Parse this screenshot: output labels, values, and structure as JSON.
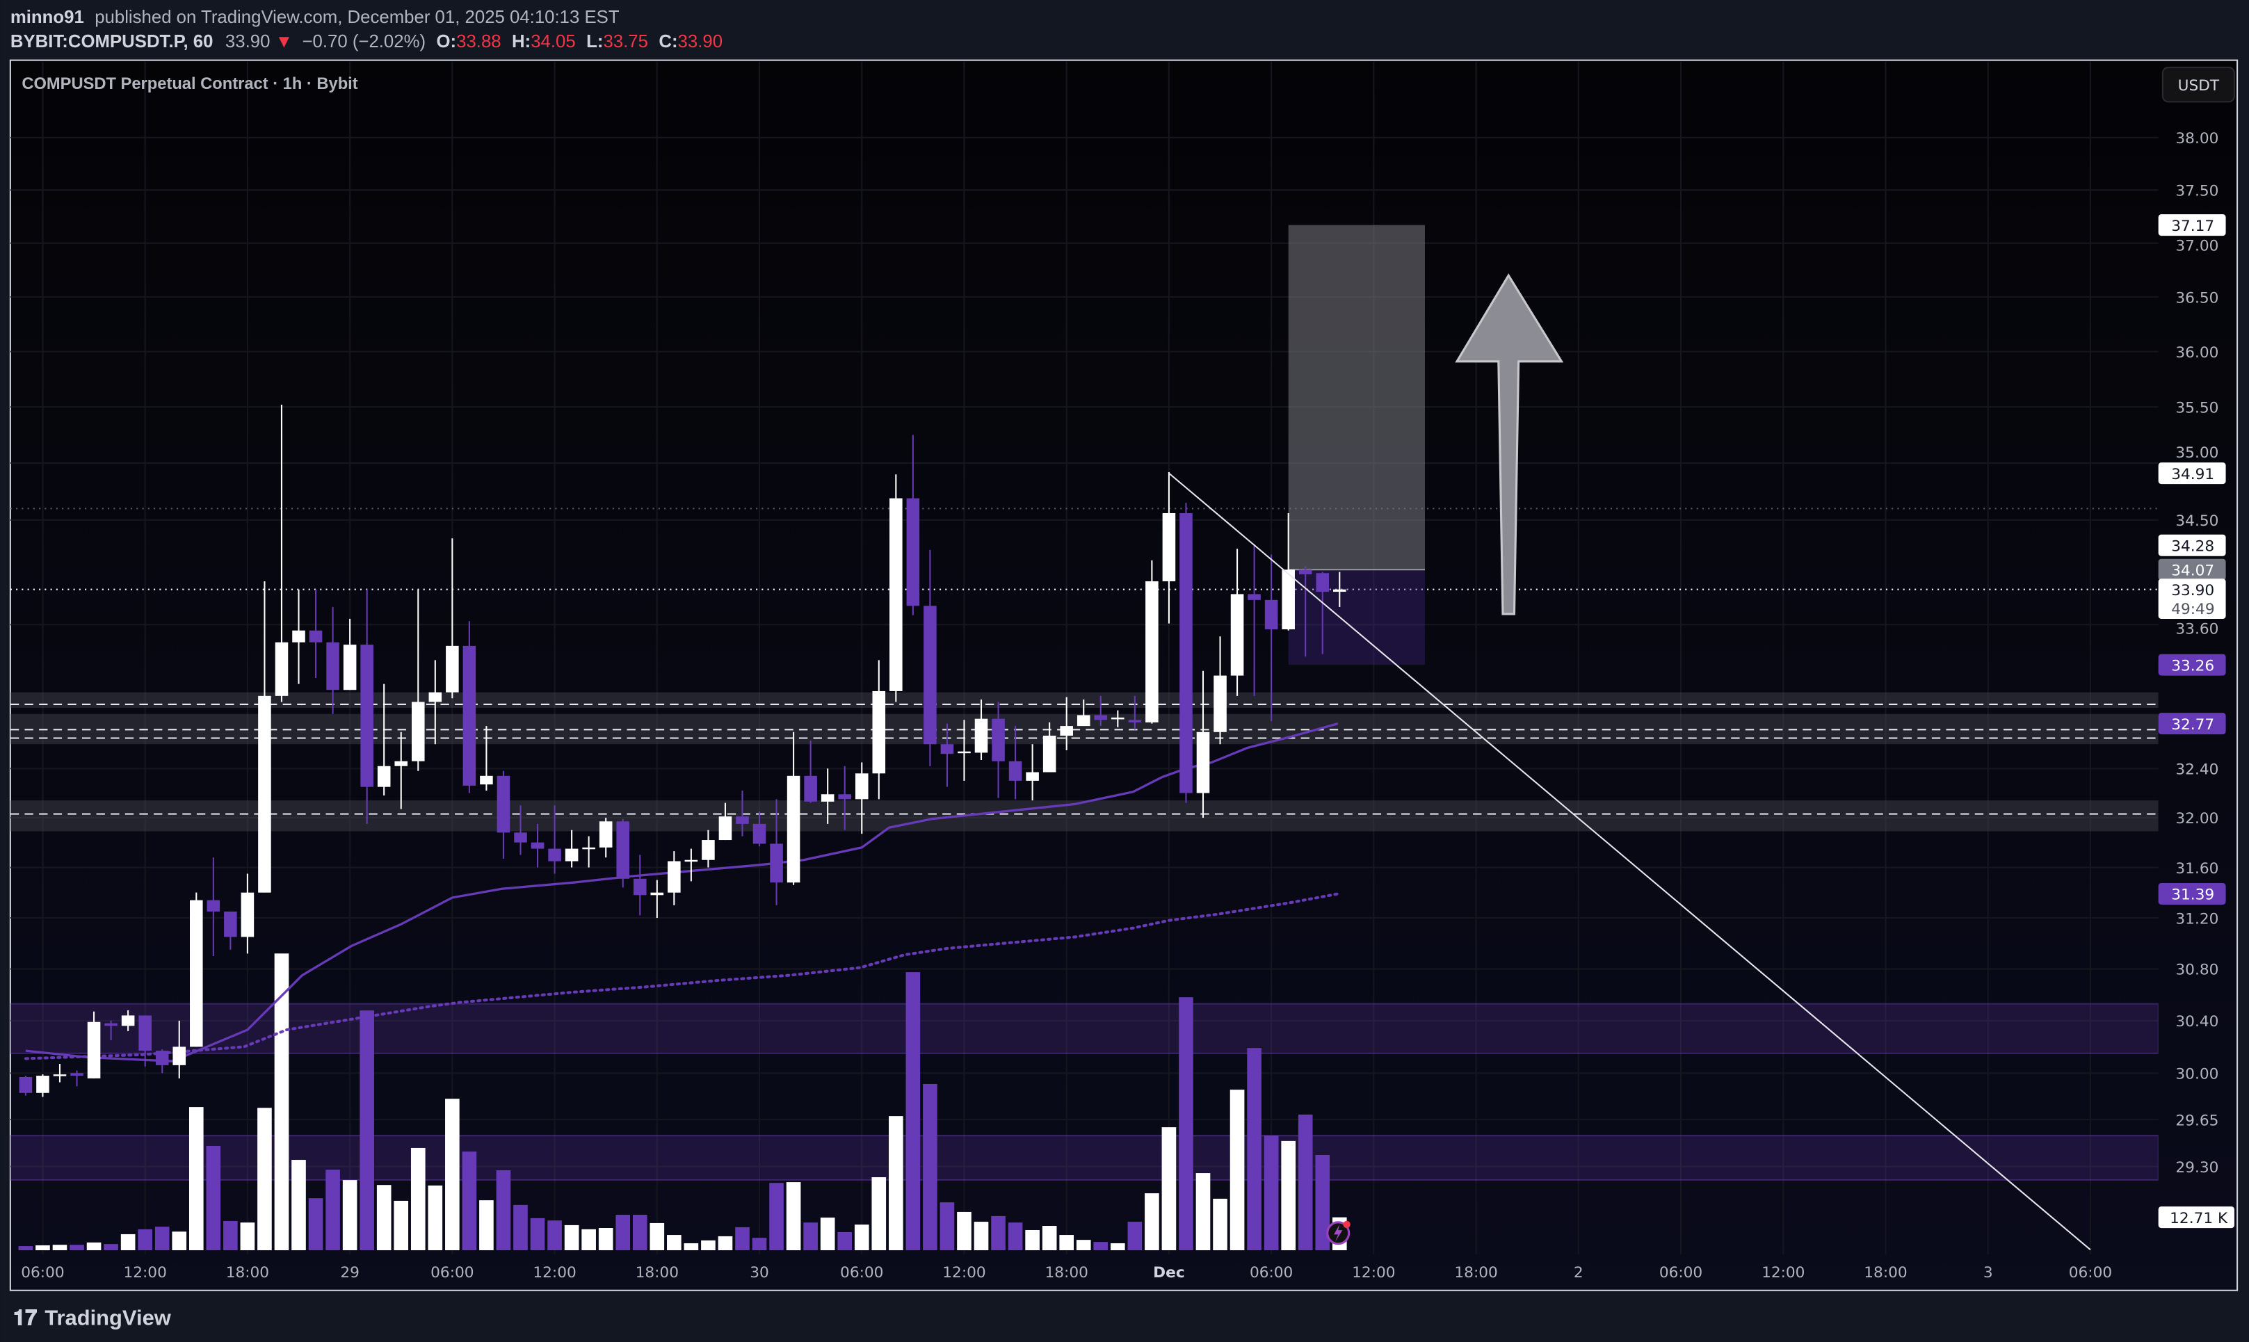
{
  "header": {
    "author": "minno91",
    "published": "published on TradingView.com, December 01, 2025 04:10:13 EST",
    "symbol": "BYBIT:COMPUSDT.P, 60",
    "last": "33.90",
    "change": "−0.70 (−2.02%)",
    "o_label": "O:",
    "o": "33.88",
    "h_label": "H:",
    "h": "34.05",
    "l_label": "L:",
    "l": "33.75",
    "c_label": "C:",
    "c": "33.90"
  },
  "legend": "COMPUSDT Perpetual Contract · 1h · Bybit",
  "currency_button": "USDT",
  "footer": {
    "logo": "TradingView"
  },
  "colors": {
    "up": "#ffffff",
    "down": "#673ab7",
    "ma": "#673ab7",
    "background": "#050509",
    "down_arrow": "#f23645"
  },
  "chart_data": {
    "type": "candlestick",
    "interval": "1h",
    "y_scale": "log",
    "ylim": [
      29.1,
      38.4
    ],
    "grid": true,
    "y_ticks": [
      "38.00",
      "37.50",
      "37.00",
      "36.50",
      "36.00",
      "35.50",
      "35.00",
      "34.50",
      "33.60",
      "32.40",
      "32.00",
      "31.60",
      "31.20",
      "30.80",
      "30.40",
      "30.00",
      "29.65",
      "29.30"
    ],
    "x_ticks": [
      "06:00",
      "12:00",
      "18:00",
      "29",
      "06:00",
      "12:00",
      "18:00",
      "30",
      "06:00",
      "12:00",
      "18:00",
      "Dec",
      "06:00",
      "12:00",
      "18:00",
      "2",
      "06:00",
      "12:00",
      "18:00",
      "3",
      "06:00"
    ],
    "candle_fields": [
      "open",
      "high",
      "low",
      "close",
      "volume_K"
    ],
    "candles": [
      [
        29.97,
        29.98,
        29.83,
        29.85,
        1.6
      ],
      [
        29.85,
        29.99,
        29.82,
        29.98,
        1.9
      ],
      [
        29.98,
        30.07,
        29.93,
        29.99,
        2.1
      ],
      [
        30.0,
        30.02,
        29.9,
        29.98,
        2.1
      ],
      [
        29.96,
        30.47,
        29.96,
        30.39,
        3.0
      ],
      [
        30.38,
        30.4,
        30.25,
        30.36,
        2.4
      ],
      [
        30.36,
        30.48,
        30.32,
        30.44,
        6.2
      ],
      [
        30.44,
        30.44,
        30.05,
        30.17,
        8.1
      ],
      [
        30.17,
        30.18,
        30.0,
        30.06,
        9.1
      ],
      [
        30.06,
        30.4,
        29.96,
        30.2,
        7.2
      ],
      [
        30.2,
        31.4,
        30.2,
        31.34,
        55.3
      ],
      [
        31.34,
        31.68,
        30.9,
        31.25,
        40.3
      ],
      [
        31.25,
        31.25,
        30.95,
        31.05,
        11.3
      ],
      [
        31.05,
        31.55,
        30.92,
        31.4,
        10.7
      ],
      [
        31.4,
        33.97,
        31.4,
        33.0,
        55.0
      ],
      [
        33.0,
        35.52,
        32.95,
        33.45,
        114.6
      ],
      [
        33.45,
        33.9,
        33.1,
        33.55,
        34.9
      ],
      [
        33.55,
        33.9,
        33.15,
        33.45,
        20.1
      ],
      [
        33.45,
        33.75,
        32.85,
        33.05,
        31.1
      ],
      [
        33.05,
        33.65,
        33.05,
        33.43,
        27.1
      ],
      [
        33.43,
        33.9,
        31.95,
        32.25,
        92.6
      ],
      [
        32.25,
        33.1,
        32.18,
        32.42,
        25.2
      ],
      [
        32.42,
        32.7,
        32.07,
        32.46,
        19.1
      ],
      [
        32.46,
        33.9,
        32.38,
        32.95,
        39.5
      ],
      [
        32.95,
        33.3,
        32.6,
        33.03,
        25.0
      ],
      [
        33.03,
        34.34,
        32.98,
        33.42,
        58.5
      ],
      [
        33.42,
        33.63,
        32.2,
        32.26,
        38.1
      ],
      [
        32.27,
        32.75,
        32.22,
        32.34,
        19.3
      ],
      [
        32.34,
        32.38,
        31.67,
        31.88,
        30.9
      ],
      [
        31.88,
        32.1,
        31.7,
        31.8,
        17.5
      ],
      [
        31.8,
        31.95,
        31.6,
        31.75,
        12.4
      ],
      [
        31.75,
        32.1,
        31.55,
        31.65,
        11.5
      ],
      [
        31.65,
        31.9,
        31.6,
        31.75,
        9.7
      ],
      [
        31.75,
        31.85,
        31.6,
        31.76,
        8.1
      ],
      [
        31.76,
        32.0,
        31.68,
        31.97,
        8.6
      ],
      [
        31.97,
        31.99,
        31.44,
        31.51,
        13.7
      ],
      [
        31.51,
        31.7,
        31.22,
        31.38,
        13.7
      ],
      [
        31.38,
        31.5,
        31.2,
        31.4,
        10.5
      ],
      [
        31.4,
        31.73,
        31.3,
        31.65,
        5.9
      ],
      [
        31.65,
        31.75,
        31.49,
        31.66,
        2.7
      ],
      [
        31.66,
        31.9,
        31.6,
        31.82,
        3.8
      ],
      [
        31.82,
        32.12,
        31.82,
        32.01,
        5.4
      ],
      [
        32.01,
        32.22,
        31.85,
        31.95,
        8.9
      ],
      [
        31.95,
        32.05,
        31.77,
        31.79,
        4.8
      ],
      [
        31.79,
        32.15,
        31.3,
        31.48,
        26.0
      ],
      [
        31.48,
        32.7,
        31.46,
        32.34,
        26.3
      ],
      [
        32.34,
        32.63,
        32.12,
        32.13,
        10.7
      ],
      [
        32.13,
        32.4,
        31.95,
        32.19,
        12.6
      ],
      [
        32.19,
        32.42,
        31.9,
        32.15,
        7.0
      ],
      [
        32.15,
        32.45,
        31.87,
        32.36,
        9.9
      ],
      [
        32.36,
        33.3,
        32.15,
        33.04,
        28.2
      ],
      [
        33.04,
        34.9,
        32.95,
        34.69,
        51.8
      ],
      [
        34.69,
        35.25,
        33.68,
        33.76,
        107.4
      ],
      [
        33.76,
        34.24,
        32.42,
        32.6,
        64.2
      ],
      [
        32.6,
        32.77,
        32.25,
        32.52,
        18.5
      ],
      [
        32.54,
        32.8,
        32.3,
        32.54,
        14.8
      ],
      [
        32.53,
        32.97,
        32.47,
        32.81,
        11.0
      ],
      [
        32.81,
        32.95,
        32.16,
        32.46,
        13.2
      ],
      [
        32.46,
        32.75,
        32.15,
        32.3,
        10.7
      ],
      [
        32.3,
        32.6,
        32.14,
        32.37,
        7.8
      ],
      [
        32.37,
        32.78,
        32.37,
        32.67,
        9.4
      ],
      [
        32.67,
        32.99,
        32.55,
        32.75,
        5.9
      ],
      [
        32.75,
        32.97,
        32.75,
        32.84,
        4.0
      ],
      [
        32.84,
        33.0,
        32.75,
        32.8,
        3.2
      ],
      [
        32.81,
        32.88,
        32.74,
        32.82,
        2.7
      ],
      [
        32.8,
        33.0,
        32.72,
        32.78,
        11.0
      ],
      [
        32.78,
        34.15,
        32.77,
        33.97,
        22.0
      ],
      [
        33.97,
        34.92,
        33.61,
        34.56,
        47.5
      ],
      [
        34.56,
        34.65,
        32.12,
        32.2,
        97.7
      ],
      [
        32.2,
        33.21,
        32.0,
        32.7,
        29.8
      ],
      [
        32.7,
        33.5,
        32.6,
        33.17,
        19.9
      ],
      [
        33.17,
        34.25,
        33.0,
        33.86,
        62.0
      ],
      [
        33.86,
        34.29,
        33.0,
        33.81,
        78.1
      ],
      [
        33.81,
        34.2,
        32.79,
        33.56,
        44.3
      ],
      [
        33.56,
        34.56,
        33.55,
        34.07,
        42.2
      ],
      [
        34.07,
        34.1,
        33.33,
        34.03,
        52.4
      ],
      [
        34.04,
        34.05,
        33.35,
        33.88,
        36.8
      ],
      [
        33.88,
        34.05,
        33.75,
        33.9,
        12.71
      ]
    ],
    "ma_fast": [
      [
        0,
        30.17
      ],
      [
        3.6,
        30.12
      ],
      [
        8.6,
        30.09
      ],
      [
        13,
        30.33
      ],
      [
        16.2,
        30.75
      ],
      [
        19.1,
        30.98
      ],
      [
        22,
        31.15
      ],
      [
        25,
        31.36
      ],
      [
        27.9,
        31.43
      ],
      [
        32.1,
        31.48
      ],
      [
        35.5,
        31.53
      ],
      [
        38.8,
        31.57
      ],
      [
        43,
        31.62
      ],
      [
        45.6,
        31.66
      ],
      [
        49,
        31.76
      ],
      [
        50.6,
        31.92
      ],
      [
        53.1,
        31.99
      ],
      [
        57.3,
        32.05
      ],
      [
        61.5,
        32.11
      ],
      [
        64.9,
        32.21
      ],
      [
        66.6,
        32.33
      ],
      [
        68,
        32.4
      ],
      [
        69.5,
        32.45
      ],
      [
        71.6,
        32.57
      ],
      [
        74.1,
        32.66
      ],
      [
        76.9,
        32.77
      ]
    ],
    "ma_slow": [
      [
        0,
        30.11
      ],
      [
        6.9,
        30.14
      ],
      [
        12.8,
        30.2
      ],
      [
        15.3,
        30.33
      ],
      [
        19.5,
        30.42
      ],
      [
        23.7,
        30.51
      ],
      [
        25.4,
        30.54
      ],
      [
        32.1,
        30.62
      ],
      [
        36.3,
        30.66
      ],
      [
        40.5,
        30.71
      ],
      [
        44.7,
        30.75
      ],
      [
        48.9,
        30.81
      ],
      [
        51.5,
        30.91
      ],
      [
        54,
        30.96
      ],
      [
        57.3,
        31.0
      ],
      [
        61.5,
        31.05
      ],
      [
        64.9,
        31.12
      ],
      [
        67,
        31.18
      ],
      [
        69.9,
        31.23
      ],
      [
        74.1,
        31.32
      ],
      [
        76.9,
        31.39
      ]
    ],
    "levels_dashed": [
      32.93,
      32.72,
      32.65,
      32.03
    ],
    "zones_gray": [
      [
        32.9,
        33.03
      ],
      [
        32.6,
        32.85
      ],
      [
        31.89,
        32.14
      ]
    ],
    "zones_purple": [
      [
        30.15,
        30.53
      ],
      [
        29.2,
        29.53
      ]
    ],
    "dotted_level": 34.6,
    "last_price_line": 33.9,
    "trendline": {
      "from": [
        67,
        34.91
      ],
      "to": [
        121,
        28.69
      ]
    },
    "long_position": {
      "from_bar": 74,
      "to_bar": 82,
      "entry": 34.07,
      "target": 37.17,
      "stop": 33.26
    },
    "arrow_up": {
      "bar": 86.9,
      "from": 33.69,
      "to": 36.7
    },
    "price_badges": [
      {
        "text": "37.17",
        "price": 37.17,
        "style": "white"
      },
      {
        "text": "34.91",
        "price": 34.91,
        "style": "white"
      },
      {
        "text": "34.28",
        "price": 34.28,
        "style": "white"
      },
      {
        "text": "34.07",
        "price": 34.07,
        "style": "gray"
      },
      {
        "text": "33.26",
        "price": 33.26,
        "style": "purple"
      },
      {
        "text": "32.77",
        "price": 32.77,
        "style": "purple"
      },
      {
        "text": "31.39",
        "price": 31.39,
        "style": "purple"
      }
    ],
    "last_badge": {
      "price": "33.90",
      "countdown": "49:49"
    },
    "volume_badge": "12.71 K"
  }
}
